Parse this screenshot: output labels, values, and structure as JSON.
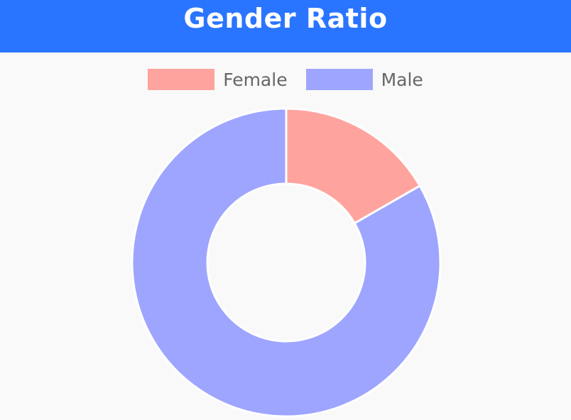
{
  "header": {
    "title": "Gender Ratio",
    "background": "#2a75ff"
  },
  "chart_data": {
    "type": "pie",
    "variant": "doughnut",
    "title": "Gender Ratio",
    "legend_position": "top",
    "categories": [
      "Female",
      "Male"
    ],
    "values": [
      16.7,
      83.3
    ],
    "colors": [
      "#ffa39e",
      "#9ea5ff"
    ],
    "border_color": "#ffffff"
  }
}
